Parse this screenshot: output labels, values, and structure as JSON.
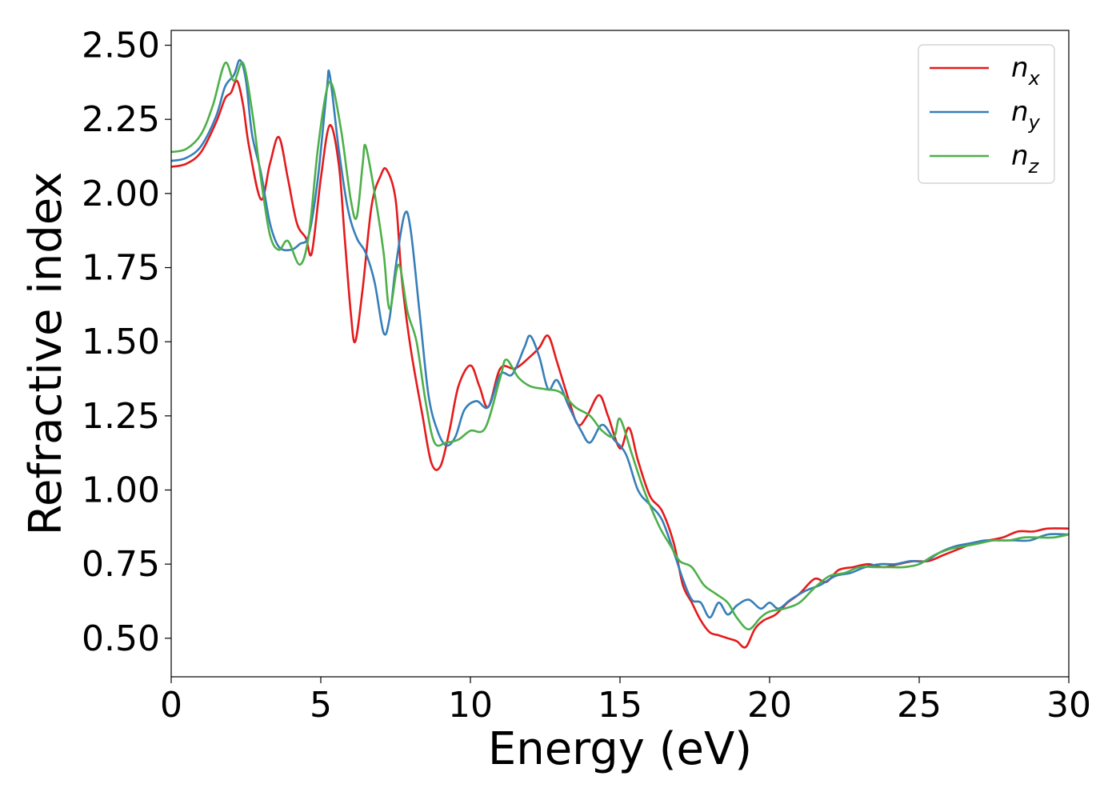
{
  "chart_data": {
    "type": "line",
    "title": "",
    "xlabel": "Energy (eV)",
    "ylabel": "Refractive index",
    "xlim": [
      0,
      30
    ],
    "ylim": [
      0.37,
      2.55
    ],
    "xticks": [
      0,
      5,
      10,
      15,
      20,
      25,
      30
    ],
    "xtick_labels": [
      "0",
      "5",
      "10",
      "15",
      "20",
      "25",
      "30"
    ],
    "yticks": [
      0.5,
      0.75,
      1.0,
      1.25,
      1.5,
      1.75,
      2.0,
      2.25,
      2.5
    ],
    "ytick_labels": [
      "0.50",
      "0.75",
      "1.00",
      "1.25",
      "1.50",
      "1.75",
      "2.00",
      "2.25",
      "2.50"
    ],
    "grid": false,
    "legend_position": "top-right",
    "series": [
      {
        "name": "n_x",
        "legend_base": "n",
        "legend_sub": "x",
        "color": "#e41a1c",
        "points": [
          [
            0,
            2.09
          ],
          [
            0.5,
            2.1
          ],
          [
            1.0,
            2.14
          ],
          [
            1.5,
            2.24
          ],
          [
            1.8,
            2.32
          ],
          [
            2.0,
            2.34
          ],
          [
            2.2,
            2.38
          ],
          [
            2.4,
            2.3
          ],
          [
            2.6,
            2.16
          ],
          [
            3.0,
            1.98
          ],
          [
            3.3,
            2.1
          ],
          [
            3.6,
            2.19
          ],
          [
            3.9,
            2.05
          ],
          [
            4.2,
            1.9
          ],
          [
            4.5,
            1.85
          ],
          [
            4.7,
            1.8
          ],
          [
            5.0,
            2.05
          ],
          [
            5.3,
            2.23
          ],
          [
            5.6,
            2.1
          ],
          [
            5.8,
            1.85
          ],
          [
            6.0,
            1.6
          ],
          [
            6.15,
            1.5
          ],
          [
            6.4,
            1.68
          ],
          [
            6.7,
            1.96
          ],
          [
            7.0,
            2.06
          ],
          [
            7.2,
            2.08
          ],
          [
            7.5,
            1.98
          ],
          [
            7.7,
            1.72
          ],
          [
            8.0,
            1.48
          ],
          [
            8.4,
            1.25
          ],
          [
            8.7,
            1.09
          ],
          [
            9.0,
            1.08
          ],
          [
            9.3,
            1.2
          ],
          [
            9.6,
            1.35
          ],
          [
            10.0,
            1.42
          ],
          [
            10.3,
            1.35
          ],
          [
            10.6,
            1.28
          ],
          [
            11.0,
            1.41
          ],
          [
            11.5,
            1.41
          ],
          [
            12.0,
            1.45
          ],
          [
            12.3,
            1.48
          ],
          [
            12.6,
            1.52
          ],
          [
            12.9,
            1.43
          ],
          [
            13.3,
            1.3
          ],
          [
            13.6,
            1.22
          ],
          [
            13.9,
            1.25
          ],
          [
            14.3,
            1.32
          ],
          [
            14.6,
            1.25
          ],
          [
            15.0,
            1.14
          ],
          [
            15.3,
            1.21
          ],
          [
            15.6,
            1.1
          ],
          [
            16.0,
            0.98
          ],
          [
            16.4,
            0.93
          ],
          [
            16.8,
            0.82
          ],
          [
            17.1,
            0.68
          ],
          [
            17.4,
            0.62
          ],
          [
            17.7,
            0.56
          ],
          [
            18.0,
            0.52
          ],
          [
            18.3,
            0.51
          ],
          [
            18.6,
            0.5
          ],
          [
            18.9,
            0.49
          ],
          [
            19.2,
            0.47
          ],
          [
            19.5,
            0.53
          ],
          [
            19.8,
            0.56
          ],
          [
            20.2,
            0.58
          ],
          [
            20.6,
            0.62
          ],
          [
            21.0,
            0.65
          ],
          [
            21.5,
            0.7
          ],
          [
            21.9,
            0.69
          ],
          [
            22.3,
            0.73
          ],
          [
            22.8,
            0.74
          ],
          [
            23.3,
            0.75
          ],
          [
            23.8,
            0.74
          ],
          [
            24.3,
            0.75
          ],
          [
            24.8,
            0.76
          ],
          [
            25.3,
            0.76
          ],
          [
            25.8,
            0.78
          ],
          [
            26.3,
            0.8
          ],
          [
            26.8,
            0.82
          ],
          [
            27.3,
            0.83
          ],
          [
            27.8,
            0.84
          ],
          [
            28.3,
            0.86
          ],
          [
            28.8,
            0.86
          ],
          [
            29.3,
            0.87
          ],
          [
            30.0,
            0.87
          ]
        ]
      },
      {
        "name": "n_y",
        "legend_base": "n",
        "legend_sub": "y",
        "color": "#377eb8",
        "points": [
          [
            0,
            2.11
          ],
          [
            0.5,
            2.12
          ],
          [
            1.0,
            2.16
          ],
          [
            1.5,
            2.26
          ],
          [
            1.8,
            2.36
          ],
          [
            2.1,
            2.4
          ],
          [
            2.3,
            2.45
          ],
          [
            2.5,
            2.38
          ],
          [
            2.7,
            2.2
          ],
          [
            3.0,
            2.07
          ],
          [
            3.3,
            1.9
          ],
          [
            3.6,
            1.82
          ],
          [
            4.0,
            1.81
          ],
          [
            4.3,
            1.83
          ],
          [
            4.6,
            1.86
          ],
          [
            4.9,
            2.05
          ],
          [
            5.2,
            2.35
          ],
          [
            5.3,
            2.4
          ],
          [
            5.6,
            2.15
          ],
          [
            5.9,
            1.95
          ],
          [
            6.2,
            1.85
          ],
          [
            6.5,
            1.8
          ],
          [
            6.8,
            1.7
          ],
          [
            7.1,
            1.53
          ],
          [
            7.3,
            1.58
          ],
          [
            7.5,
            1.75
          ],
          [
            7.8,
            1.93
          ],
          [
            8.0,
            1.88
          ],
          [
            8.3,
            1.6
          ],
          [
            8.6,
            1.32
          ],
          [
            8.9,
            1.2
          ],
          [
            9.2,
            1.15
          ],
          [
            9.5,
            1.18
          ],
          [
            9.8,
            1.27
          ],
          [
            10.2,
            1.3
          ],
          [
            10.6,
            1.28
          ],
          [
            11.0,
            1.39
          ],
          [
            11.4,
            1.39
          ],
          [
            11.8,
            1.48
          ],
          [
            12.0,
            1.52
          ],
          [
            12.3,
            1.45
          ],
          [
            12.6,
            1.34
          ],
          [
            12.9,
            1.37
          ],
          [
            13.3,
            1.28
          ],
          [
            13.7,
            1.2
          ],
          [
            14.0,
            1.16
          ],
          [
            14.4,
            1.22
          ],
          [
            14.8,
            1.17
          ],
          [
            15.2,
            1.12
          ],
          [
            15.6,
            1.0
          ],
          [
            16.0,
            0.95
          ],
          [
            16.4,
            0.9
          ],
          [
            16.8,
            0.79
          ],
          [
            17.1,
            0.7
          ],
          [
            17.4,
            0.63
          ],
          [
            17.7,
            0.62
          ],
          [
            18.0,
            0.57
          ],
          [
            18.3,
            0.62
          ],
          [
            18.6,
            0.58
          ],
          [
            18.9,
            0.61
          ],
          [
            19.3,
            0.63
          ],
          [
            19.7,
            0.6
          ],
          [
            20.0,
            0.62
          ],
          [
            20.3,
            0.6
          ],
          [
            20.7,
            0.63
          ],
          [
            21.2,
            0.66
          ],
          [
            21.7,
            0.68
          ],
          [
            22.2,
            0.71
          ],
          [
            22.7,
            0.72
          ],
          [
            23.2,
            0.74
          ],
          [
            23.7,
            0.75
          ],
          [
            24.2,
            0.75
          ],
          [
            24.7,
            0.76
          ],
          [
            25.2,
            0.76
          ],
          [
            25.7,
            0.79
          ],
          [
            26.2,
            0.81
          ],
          [
            26.7,
            0.82
          ],
          [
            27.2,
            0.83
          ],
          [
            27.7,
            0.83
          ],
          [
            28.2,
            0.83
          ],
          [
            28.7,
            0.83
          ],
          [
            29.3,
            0.85
          ],
          [
            30.0,
            0.85
          ]
        ]
      },
      {
        "name": "n_z",
        "legend_base": "n",
        "legend_sub": "z",
        "color": "#4daf4a",
        "points": [
          [
            0,
            2.14
          ],
          [
            0.5,
            2.15
          ],
          [
            1.0,
            2.2
          ],
          [
            1.4,
            2.3
          ],
          [
            1.8,
            2.44
          ],
          [
            2.1,
            2.38
          ],
          [
            2.4,
            2.44
          ],
          [
            2.7,
            2.28
          ],
          [
            3.0,
            2.05
          ],
          [
            3.3,
            1.86
          ],
          [
            3.6,
            1.81
          ],
          [
            3.9,
            1.84
          ],
          [
            4.3,
            1.76
          ],
          [
            4.6,
            1.86
          ],
          [
            4.9,
            2.15
          ],
          [
            5.2,
            2.35
          ],
          [
            5.4,
            2.36
          ],
          [
            5.7,
            2.2
          ],
          [
            6.0,
            1.98
          ],
          [
            6.2,
            1.92
          ],
          [
            6.4,
            2.1
          ],
          [
            6.5,
            2.16
          ],
          [
            6.8,
            2.0
          ],
          [
            7.1,
            1.8
          ],
          [
            7.3,
            1.61
          ],
          [
            7.6,
            1.76
          ],
          [
            7.9,
            1.6
          ],
          [
            8.2,
            1.5
          ],
          [
            8.5,
            1.3
          ],
          [
            8.8,
            1.16
          ],
          [
            9.2,
            1.16
          ],
          [
            9.6,
            1.17
          ],
          [
            10.0,
            1.2
          ],
          [
            10.5,
            1.21
          ],
          [
            11.0,
            1.38
          ],
          [
            11.2,
            1.44
          ],
          [
            11.6,
            1.38
          ],
          [
            12.0,
            1.35
          ],
          [
            12.5,
            1.34
          ],
          [
            13.0,
            1.33
          ],
          [
            13.5,
            1.28
          ],
          [
            14.0,
            1.25
          ],
          [
            14.4,
            1.2
          ],
          [
            14.8,
            1.18
          ],
          [
            15.0,
            1.24
          ],
          [
            15.4,
            1.12
          ],
          [
            15.8,
            1.0
          ],
          [
            16.3,
            0.88
          ],
          [
            16.7,
            0.81
          ],
          [
            17.0,
            0.76
          ],
          [
            17.4,
            0.74
          ],
          [
            17.8,
            0.68
          ],
          [
            18.2,
            0.65
          ],
          [
            18.6,
            0.62
          ],
          [
            18.9,
            0.57
          ],
          [
            19.3,
            0.53
          ],
          [
            19.7,
            0.57
          ],
          [
            20.0,
            0.59
          ],
          [
            20.5,
            0.6
          ],
          [
            21.0,
            0.62
          ],
          [
            21.5,
            0.67
          ],
          [
            22.0,
            0.71
          ],
          [
            22.5,
            0.72
          ],
          [
            23.0,
            0.74
          ],
          [
            23.5,
            0.74
          ],
          [
            24.0,
            0.74
          ],
          [
            24.5,
            0.74
          ],
          [
            25.0,
            0.75
          ],
          [
            25.5,
            0.78
          ],
          [
            26.0,
            0.8
          ],
          [
            26.5,
            0.81
          ],
          [
            27.0,
            0.82
          ],
          [
            27.5,
            0.83
          ],
          [
            28.0,
            0.83
          ],
          [
            28.5,
            0.84
          ],
          [
            29.0,
            0.84
          ],
          [
            29.5,
            0.84
          ],
          [
            30.0,
            0.85
          ]
        ]
      }
    ]
  }
}
